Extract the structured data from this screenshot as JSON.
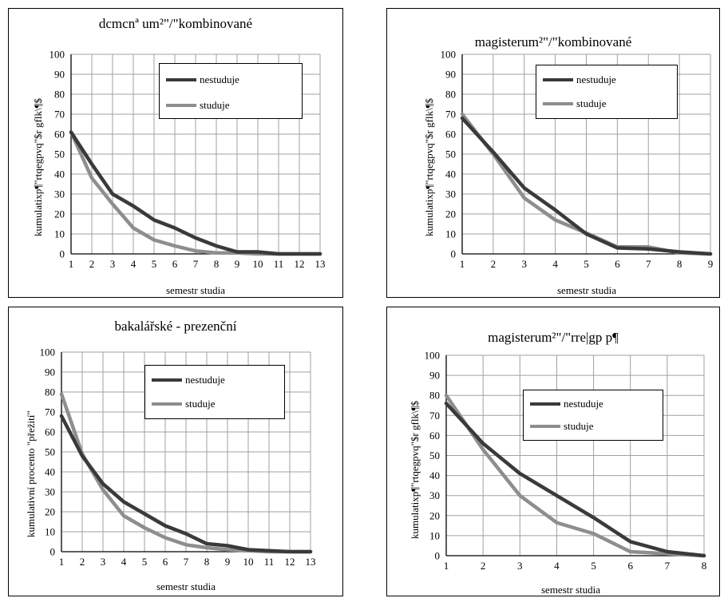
{
  "colors": {
    "nestuduje": "#3a3a3a",
    "studuje": "#8e8e8e",
    "grid": "#a0a0a0"
  },
  "chart_data": [
    {
      "type": "line",
      "title": "dcmcnª um²\"/\"kombinované",
      "xlabel": "semestr studia",
      "ylabel": "kumulatixp¶\"rtqegpvq\"$r gflk\\¶$",
      "x": [
        1,
        2,
        3,
        4,
        5,
        6,
        7,
        8,
        9,
        10,
        11,
        12,
        13
      ],
      "xlim": [
        1,
        13
      ],
      "ylim": [
        0,
        100
      ],
      "yticks": [
        0,
        10,
        20,
        30,
        40,
        50,
        60,
        70,
        80,
        90,
        100
      ],
      "grid": true,
      "legend": "top-right",
      "series": [
        {
          "name": "nestuduje",
          "values": [
            61,
            45,
            30,
            24,
            17,
            13,
            8,
            4,
            1,
            1,
            0,
            0,
            0
          ]
        },
        {
          "name": "studuje",
          "values": [
            61,
            38,
            25,
            13,
            7,
            4,
            1.5,
            0.5,
            0.5,
            0,
            0,
            0,
            0
          ]
        }
      ]
    },
    {
      "type": "line",
      "title": "magisterum²\"/\"kombinované",
      "xlabel": "semestr studia",
      "ylabel": "kumulatixp¶\"rtqegpvq\"$r gflk\\¶$",
      "x": [
        1,
        2,
        3,
        4,
        5,
        6,
        7,
        8,
        9
      ],
      "xlim": [
        1,
        9
      ],
      "ylim": [
        0,
        100
      ],
      "yticks": [
        0,
        10,
        20,
        30,
        40,
        50,
        60,
        70,
        80,
        90,
        100
      ],
      "grid": true,
      "legend": "top-right",
      "series": [
        {
          "name": "nestuduje",
          "values": [
            68,
            51,
            33,
            22,
            10,
            3,
            2.5,
            1,
            0
          ]
        },
        {
          "name": "studuje",
          "values": [
            70,
            50,
            28,
            17,
            10.5,
            3.5,
            3.5,
            0.5,
            0
          ]
        }
      ]
    },
    {
      "type": "line",
      "title": "bakalářské - prezenční",
      "xlabel": "semestr studia",
      "ylabel": "kumulativní procento \"přežití\"",
      "x": [
        1,
        2,
        3,
        4,
        5,
        6,
        7,
        8,
        9,
        10,
        11,
        12,
        13
      ],
      "xlim": [
        1,
        13
      ],
      "ylim": [
        0,
        100
      ],
      "yticks": [
        0,
        10,
        20,
        30,
        40,
        50,
        60,
        70,
        80,
        90,
        100
      ],
      "grid": true,
      "legend": "top-right",
      "series": [
        {
          "name": "nestuduje",
          "values": [
            68,
            48,
            34,
            25,
            19,
            13,
            9,
            4,
            3,
            1,
            0.5,
            0,
            0
          ]
        },
        {
          "name": "studuje",
          "values": [
            79,
            49,
            31,
            18,
            12,
            7,
            3.5,
            2,
            1,
            0.5,
            0,
            0,
            0
          ]
        }
      ]
    },
    {
      "type": "line",
      "title": "magisterum²\"/\"rre|gp p¶",
      "xlabel": "semestr studia",
      "ylabel": "kumulatixp¶\"rtqegpvq\"$r gflk\\¶$",
      "x": [
        1,
        2,
        3,
        4,
        5,
        6,
        7,
        8
      ],
      "xlim": [
        1,
        8
      ],
      "ylim": [
        0,
        100
      ],
      "yticks": [
        0,
        10,
        20,
        30,
        40,
        50,
        60,
        70,
        80,
        90,
        100
      ],
      "grid": true,
      "legend": "top-right",
      "series": [
        {
          "name": "nestuduje",
          "values": [
            76,
            56,
            41,
            30,
            19,
            7,
            2,
            0
          ]
        },
        {
          "name": "studuje",
          "values": [
            80,
            53,
            30,
            16.5,
            11,
            2,
            1,
            0
          ]
        }
      ]
    }
  ]
}
